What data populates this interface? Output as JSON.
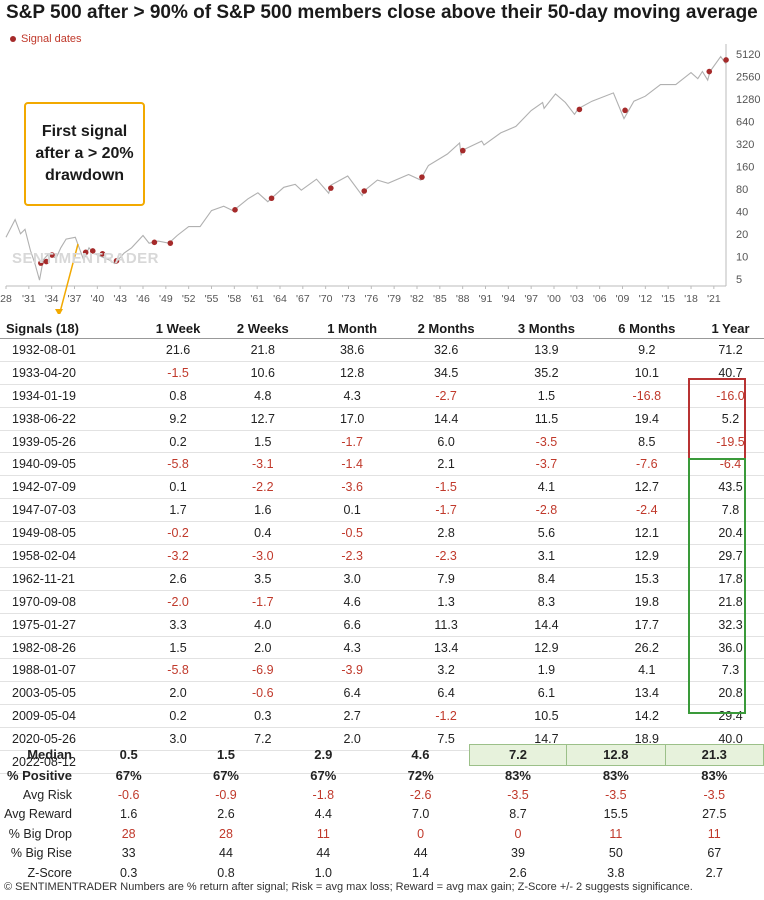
{
  "title": "S&P 500 after > 90% of S&P 500 members close above their 50-day moving average",
  "legend": {
    "label": "Signal dates",
    "color": "#a52a2a"
  },
  "watermark": "SENTIMENTRADER",
  "callout": {
    "text": "First signal\nafter a > 20%\ndrawdown",
    "border_color": "#f2a900"
  },
  "chart_data": {
    "type": "line",
    "title": "S&P 500 after > 90% of S&P 500 members close above their 50-day moving average",
    "y_scale": "log",
    "ylim": [
      4,
      7000
    ],
    "y_ticks": [
      5,
      10,
      20,
      40,
      80,
      160,
      320,
      640,
      1280,
      2560,
      5120
    ],
    "xlim": [
      1928,
      2022.6
    ],
    "x_ticks": [
      "28",
      "'31",
      "'34",
      "'37",
      "'40",
      "'43",
      "'46",
      "'49",
      "'52",
      "'55",
      "'58",
      "'61",
      "'64",
      "'67",
      "'70",
      "'73",
      "'76",
      "'79",
      "'82",
      "'85",
      "'88",
      "'91",
      "'94",
      "'97",
      "'00",
      "'03",
      "'06",
      "'09",
      "'12",
      "'15",
      "'18",
      "'21"
    ],
    "series": [
      {
        "color": "#b0b0b0",
        "x": [
          1928,
          1929.2,
          1929.9,
          1930.5,
          1931.2,
          1931.8,
          1932.4,
          1932.9,
          1933.5,
          1934.0,
          1934.6,
          1935.2,
          1935.9,
          1937.1,
          1938.2,
          1938.9,
          1939.5,
          1940.4,
          1941.5,
          1942.3,
          1943.5,
          1944.5,
          1946.0,
          1946.8,
          1948.0,
          1949.4,
          1950.5,
          1952.0,
          1953.5,
          1955.0,
          1956.6,
          1957.8,
          1958.5,
          1959.8,
          1961.1,
          1962.4,
          1962.9,
          1964.5,
          1966.0,
          1966.8,
          1968.8,
          1970.4,
          1970.7,
          1972.9,
          1974.8,
          1975.1,
          1976.8,
          1978.2,
          1980.9,
          1982.5,
          1982.7,
          1983.5,
          1986.0,
          1987.6,
          1987.8,
          1988.0,
          1990.5,
          1990.8,
          1993.0,
          1995.0,
          1997.0,
          1998.5,
          1998.7,
          2000.2,
          2001.5,
          2002.7,
          2003.2,
          2005.0,
          2007.8,
          2009.2,
          2010.5,
          2012.0,
          2014.0,
          2016.0,
          2018.0,
          2018.9,
          2019.5,
          2020.2,
          2020.5,
          2021.9,
          2022.5,
          2022.6
        ],
        "values": [
          18,
          31,
          20,
          23,
          12,
          8,
          4.8,
          9,
          10.5,
          10,
          9.5,
          13,
          17,
          18,
          9,
          13,
          11,
          10,
          9,
          8,
          11,
          13,
          19,
          15,
          16,
          15,
          19,
          25,
          25,
          41,
          47,
          41,
          46,
          59,
          71,
          54,
          60,
          84,
          92,
          77,
          108,
          70,
          90,
          119,
          65,
          76,
          105,
          95,
          125,
          105,
          118,
          165,
          235,
          330,
          225,
          265,
          350,
          310,
          450,
          550,
          900,
          1150,
          960,
          1500,
          1150,
          800,
          950,
          1200,
          1550,
          700,
          1200,
          1400,
          2000,
          2000,
          2900,
          2400,
          3000,
          2300,
          3000,
          4750,
          3900,
          4300
        ]
      }
    ],
    "signals": [
      {
        "date": "1932-08-01",
        "x": 1932.58,
        "y": 8.1
      },
      {
        "date": "1933-04-20",
        "x": 1933.3,
        "y": 8.5
      },
      {
        "date": "1934-01-19",
        "x": 1934.05,
        "y": 10.4
      },
      {
        "date": "1938-06-22",
        "x": 1938.47,
        "y": 11.3
      },
      {
        "date": "1939-05-26",
        "x": 1939.4,
        "y": 11.8
      },
      {
        "date": "1940-09-05",
        "x": 1940.68,
        "y": 10.8
      },
      {
        "date": "1942-07-09",
        "x": 1942.52,
        "y": 8.7
      },
      {
        "date": "1947-07-03",
        "x": 1947.5,
        "y": 15.4
      },
      {
        "date": "1949-08-05",
        "x": 1949.59,
        "y": 15.0
      },
      {
        "date": "1958-02-04",
        "x": 1958.09,
        "y": 42
      },
      {
        "date": "1962-11-21",
        "x": 1962.89,
        "y": 60
      },
      {
        "date": "1970-09-08",
        "x": 1970.68,
        "y": 82
      },
      {
        "date": "1975-01-27",
        "x": 1975.07,
        "y": 75
      },
      {
        "date": "1982-08-26",
        "x": 1982.65,
        "y": 115
      },
      {
        "date": "1988-01-07",
        "x": 1988.02,
        "y": 261
      },
      {
        "date": "2003-05-05",
        "x": 2003.34,
        "y": 930
      },
      {
        "date": "2009-05-04",
        "x": 2009.34,
        "y": 904
      },
      {
        "date": "2020-05-26",
        "x": 2020.4,
        "y": 2990
      },
      {
        "date": "2022-08-12",
        "x": 2022.61,
        "y": 4280
      }
    ]
  },
  "table": {
    "headers": [
      "Signals (18)",
      "1 Week",
      "2 Weeks",
      "1 Month",
      "2 Months",
      "3 Months",
      "6 Months",
      "1 Year"
    ],
    "rows": [
      [
        "1932-08-01",
        "21.6",
        "21.8",
        "38.6",
        "32.6",
        "13.9",
        "9.2",
        "71.2"
      ],
      [
        "1933-04-20",
        "-1.5",
        "10.6",
        "12.8",
        "34.5",
        "35.2",
        "10.1",
        "40.7"
      ],
      [
        "1934-01-19",
        "0.8",
        "4.8",
        "4.3",
        "-2.7",
        "1.5",
        "-16.8",
        "-16.0"
      ],
      [
        "1938-06-22",
        "9.2",
        "12.7",
        "17.0",
        "14.4",
        "11.5",
        "19.4",
        "5.2"
      ],
      [
        "1939-05-26",
        "0.2",
        "1.5",
        "-1.7",
        "6.0",
        "-3.5",
        "8.5",
        "-19.5"
      ],
      [
        "1940-09-05",
        "-5.8",
        "-3.1",
        "-1.4",
        "2.1",
        "-3.7",
        "-7.6",
        "-6.4"
      ],
      [
        "1942-07-09",
        "0.1",
        "-2.2",
        "-3.6",
        "-1.5",
        "4.1",
        "12.7",
        "43.5"
      ],
      [
        "1947-07-03",
        "1.7",
        "1.6",
        "0.1",
        "-1.7",
        "-2.8",
        "-2.4",
        "7.8"
      ],
      [
        "1949-08-05",
        "-0.2",
        "0.4",
        "-0.5",
        "2.8",
        "5.6",
        "12.1",
        "20.4"
      ],
      [
        "1958-02-04",
        "-3.2",
        "-3.0",
        "-2.3",
        "-2.3",
        "3.1",
        "12.9",
        "29.7"
      ],
      [
        "1962-11-21",
        "2.6",
        "3.5",
        "3.0",
        "7.9",
        "8.4",
        "15.3",
        "17.8"
      ],
      [
        "1970-09-08",
        "-2.0",
        "-1.7",
        "4.6",
        "1.3",
        "8.3",
        "19.8",
        "21.8"
      ],
      [
        "1975-01-27",
        "3.3",
        "4.0",
        "6.6",
        "11.3",
        "14.4",
        "17.7",
        "32.3"
      ],
      [
        "1982-08-26",
        "1.5",
        "2.0",
        "4.3",
        "13.4",
        "12.9",
        "26.2",
        "36.0"
      ],
      [
        "1988-01-07",
        "-5.8",
        "-6.9",
        "-3.9",
        "3.2",
        "1.9",
        "4.1",
        "7.3"
      ],
      [
        "2003-05-05",
        "2.0",
        "-0.6",
        "6.4",
        "6.4",
        "6.1",
        "13.4",
        "20.8"
      ],
      [
        "2009-05-04",
        "0.2",
        "0.3",
        "2.7",
        "-1.2",
        "10.5",
        "14.2",
        "29.4"
      ],
      [
        "2020-05-26",
        "3.0",
        "7.2",
        "2.0",
        "7.5",
        "14.7",
        "18.9",
        "40.0"
      ],
      [
        "2022-08-12",
        "",
        "",
        "",
        "",
        "",
        "",
        ""
      ]
    ]
  },
  "stats": [
    {
      "label": "Median",
      "values": [
        "0.5",
        "1.5",
        "2.9",
        "4.6",
        "7.2",
        "12.8",
        "21.3"
      ],
      "bold": true
    },
    {
      "label": "% Positive",
      "values": [
        "67%",
        "67%",
        "67%",
        "72%",
        "83%",
        "83%",
        "83%"
      ],
      "bold": true
    },
    {
      "label": "Avg Risk",
      "values": [
        "-0.6",
        "-0.9",
        "-1.8",
        "-2.6",
        "-3.5",
        "-3.5",
        "-3.5"
      ],
      "neg": true
    },
    {
      "label": "Avg Reward",
      "values": [
        "1.6",
        "2.6",
        "4.4",
        "7.0",
        "8.7",
        "15.5",
        "27.5"
      ]
    },
    {
      "label": "% Big Drop",
      "values": [
        "28",
        "28",
        "11",
        "0",
        "0",
        "11",
        "11"
      ],
      "neg": true
    },
    {
      "label": "% Big Rise",
      "values": [
        "33",
        "44",
        "44",
        "44",
        "39",
        "50",
        "67"
      ]
    },
    {
      "label": "Z-Score",
      "values": [
        "0.3",
        "0.8",
        "1.0",
        "1.4",
        "2.6",
        "3.8",
        "2.7"
      ]
    }
  ],
  "footer": "© SENTIMENTRADER  Numbers are % return after signal; Risk = avg max loss; Reward = avg max gain; Z-Score +/- 2 suggests significance.",
  "colors": {
    "negative": "#c0392b",
    "highlight": "#e7f2dc",
    "box_red": "#b83232",
    "box_green": "#3a9a3a"
  }
}
